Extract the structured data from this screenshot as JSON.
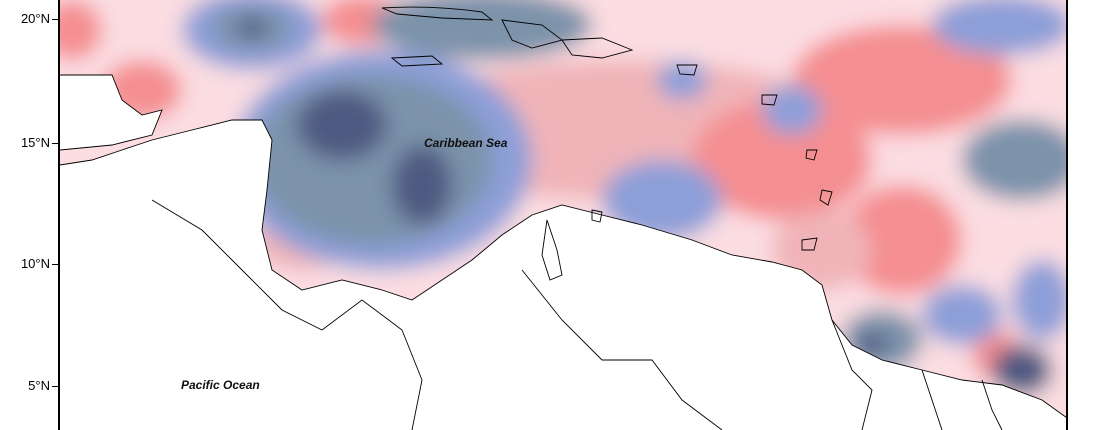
{
  "map": {
    "latitude_labels": [
      "20°N",
      "15°N",
      "10°N",
      "5°N"
    ],
    "place_labels": {
      "caribbean_sea": "Caribbean Sea",
      "pacific_ocean": "Pacific Ocean"
    },
    "colors": {
      "dark_blue": "#4f5a82",
      "slate_blue": "#7b93aa",
      "periwinkle": "#8d9fd8",
      "pale_blue": "#c9dde2",
      "pale_pink": "#fbdde2",
      "light_pink": "#f0b4b8",
      "salmon": "#f48e91",
      "land": "#ffffff",
      "coastline": "#000000"
    }
  }
}
